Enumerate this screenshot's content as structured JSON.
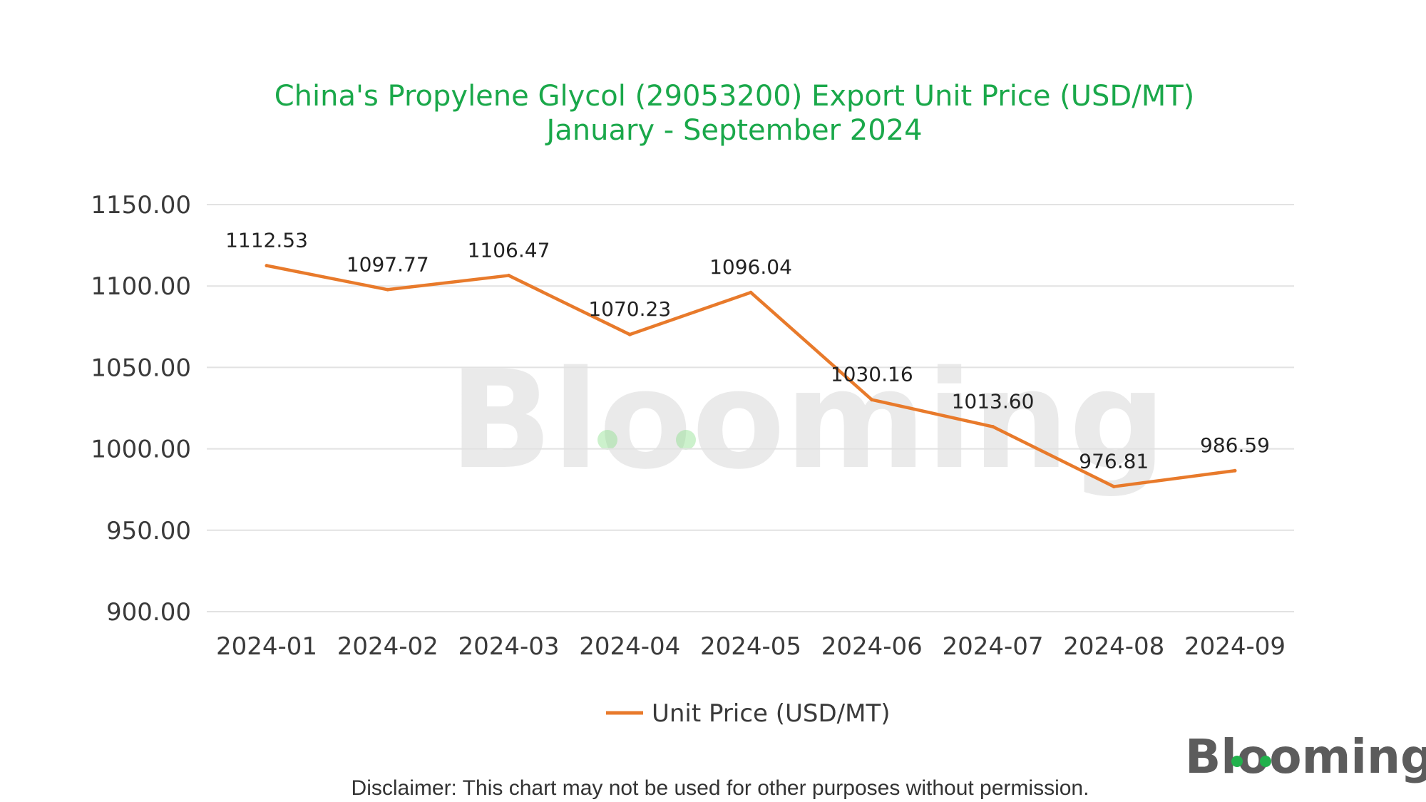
{
  "chart_data": {
    "type": "line",
    "title": "China's Propylene Glycol (29053200) Export Unit Price (USD/MT)",
    "subtitle": "January - September 2024",
    "categories": [
      "2024-01",
      "2024-02",
      "2024-03",
      "2024-04",
      "2024-05",
      "2024-06",
      "2024-07",
      "2024-08",
      "2024-09"
    ],
    "series": [
      {
        "name": "Unit Price (USD/MT)",
        "values": [
          1112.53,
          1097.77,
          1106.47,
          1070.23,
          1096.04,
          1030.16,
          1013.6,
          976.81,
          986.59
        ],
        "labels": [
          "1112.53",
          "1097.77",
          "1106.47",
          "1070.23",
          "1096.04",
          "1030.16",
          "1013.60",
          "976.81",
          "986.59"
        ],
        "color": "#e87a2b"
      }
    ],
    "y_ticks": [
      "900.00",
      "950.00",
      "1000.00",
      "1050.00",
      "1100.00",
      "1150.00"
    ],
    "ylim": [
      900,
      1150
    ],
    "grid": true,
    "legend_position": "bottom-center",
    "title_color": "#1aa84a"
  },
  "watermark": "Blooming",
  "logo": "Blooming",
  "disclaimer": "Disclaimer: This chart may not be used for other purposes without permission."
}
